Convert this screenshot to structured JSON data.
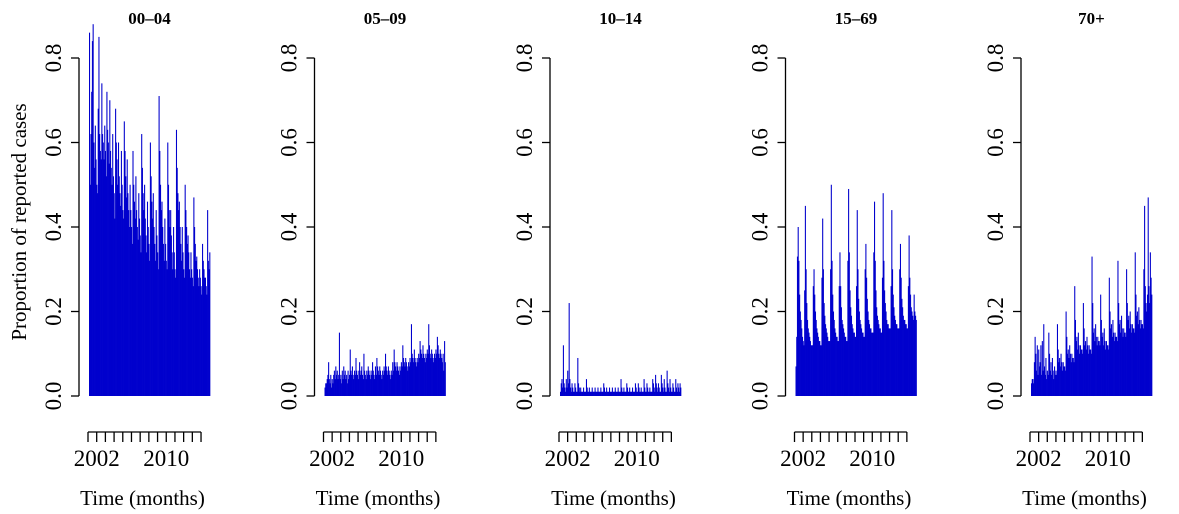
{
  "chart_data": [
    {
      "type": "bar",
      "title": "00–04",
      "xlabel": "Time (months)",
      "ylabel": "Proportion of reported cases",
      "ylim": [
        0,
        0.8
      ],
      "yticks": [
        "0.0",
        "0.2",
        "0.4",
        "0.6",
        "0.8"
      ],
      "xticklabels": [
        "2002",
        "2010"
      ],
      "x_start": "2001-01",
      "color": "#0000cd",
      "values": [
        0.86,
        0.5,
        0.62,
        0.72,
        0.84,
        0.88,
        0.6,
        0.54,
        0.64,
        0.56,
        0.5,
        0.48,
        0.68,
        0.85,
        0.62,
        0.58,
        0.56,
        0.74,
        0.62,
        0.6,
        0.56,
        0.64,
        0.58,
        0.52,
        0.72,
        0.63,
        0.6,
        0.55,
        0.7,
        0.58,
        0.54,
        0.5,
        0.62,
        0.52,
        0.48,
        0.42,
        0.68,
        0.6,
        0.56,
        0.5,
        0.6,
        0.52,
        0.48,
        0.45,
        0.58,
        0.5,
        0.44,
        0.42,
        0.65,
        0.58,
        0.52,
        0.47,
        0.56,
        0.48,
        0.44,
        0.4,
        0.5,
        0.44,
        0.4,
        0.36,
        0.58,
        0.5,
        0.46,
        0.42,
        0.52,
        0.44,
        0.4,
        0.37,
        0.48,
        0.42,
        0.38,
        0.34,
        0.62,
        0.54,
        0.48,
        0.44,
        0.5,
        0.42,
        0.38,
        0.34,
        0.46,
        0.4,
        0.36,
        0.32,
        0.6,
        0.52,
        0.46,
        0.42,
        0.48,
        0.4,
        0.36,
        0.32,
        0.44,
        0.38,
        0.34,
        0.3,
        0.71,
        0.58,
        0.5,
        0.44,
        0.46,
        0.4,
        0.36,
        0.32,
        0.42,
        0.36,
        0.32,
        0.3,
        0.6,
        0.5,
        0.44,
        0.4,
        0.44,
        0.38,
        0.34,
        0.3,
        0.4,
        0.34,
        0.3,
        0.28,
        0.63,
        0.54,
        0.48,
        0.44,
        0.46,
        0.4,
        0.36,
        0.32,
        0.4,
        0.34,
        0.3,
        0.28,
        0.5,
        0.44,
        0.4,
        0.36,
        0.38,
        0.34,
        0.3,
        0.28,
        0.34,
        0.3,
        0.28,
        0.26,
        0.47,
        0.4,
        0.36,
        0.32,
        0.33,
        0.3,
        0.28,
        0.26,
        0.3,
        0.28,
        0.26,
        0.24,
        0.36,
        0.32,
        0.3,
        0.28,
        0.28,
        0.26,
        0.24,
        0.44,
        0.32,
        0.3,
        0.34
      ]
    },
    {
      "type": "bar",
      "title": "05–09",
      "xlabel": "Time (months)",
      "ylabel": "",
      "ylim": [
        0,
        0.8
      ],
      "yticks": [
        "0.0",
        "0.2",
        "0.4",
        "0.6",
        "0.8"
      ],
      "xticklabels": [
        "2002",
        "2010"
      ],
      "x_start": "2001-01",
      "color": "#0000cd",
      "values": [
        0.02,
        0.03,
        0.03,
        0.04,
        0.05,
        0.08,
        0.04,
        0.03,
        0.05,
        0.02,
        0.04,
        0.03,
        0.05,
        0.06,
        0.04,
        0.07,
        0.05,
        0.06,
        0.04,
        0.05,
        0.15,
        0.04,
        0.05,
        0.03,
        0.06,
        0.04,
        0.07,
        0.05,
        0.06,
        0.04,
        0.05,
        0.03,
        0.06,
        0.04,
        0.05,
        0.11,
        0.06,
        0.05,
        0.07,
        0.05,
        0.04,
        0.06,
        0.05,
        0.09,
        0.06,
        0.05,
        0.04,
        0.06,
        0.08,
        0.05,
        0.06,
        0.07,
        0.05,
        0.04,
        0.1,
        0.06,
        0.05,
        0.04,
        0.06,
        0.05,
        0.07,
        0.06,
        0.05,
        0.04,
        0.06,
        0.05,
        0.08,
        0.06,
        0.05,
        0.04,
        0.07,
        0.05,
        0.09,
        0.07,
        0.06,
        0.05,
        0.07,
        0.06,
        0.05,
        0.04,
        0.06,
        0.05,
        0.07,
        0.06,
        0.1,
        0.07,
        0.06,
        0.05,
        0.07,
        0.06,
        0.05,
        0.04,
        0.06,
        0.05,
        0.08,
        0.06,
        0.11,
        0.08,
        0.07,
        0.06,
        0.08,
        0.07,
        0.06,
        0.05,
        0.07,
        0.06,
        0.08,
        0.07,
        0.12,
        0.09,
        0.08,
        0.07,
        0.09,
        0.08,
        0.07,
        0.06,
        0.08,
        0.07,
        0.09,
        0.08,
        0.17,
        0.1,
        0.09,
        0.08,
        0.11,
        0.09,
        0.08,
        0.07,
        0.09,
        0.08,
        0.1,
        0.09,
        0.13,
        0.11,
        0.1,
        0.09,
        0.12,
        0.1,
        0.09,
        0.08,
        0.1,
        0.09,
        0.11,
        0.1,
        0.17,
        0.12,
        0.1,
        0.09,
        0.11,
        0.1,
        0.09,
        0.08,
        0.1,
        0.09,
        0.11,
        0.1,
        0.14,
        0.12,
        0.1,
        0.09,
        0.11,
        0.1,
        0.09,
        0.08,
        0.1,
        0.06,
        0.13,
        0.08
      ]
    },
    {
      "type": "bar",
      "title": "10–14",
      "xlabel": "Time (months)",
      "ylabel": "",
      "ylim": [
        0,
        0.8
      ],
      "yticks": [
        "0.0",
        "0.2",
        "0.4",
        "0.6",
        "0.8"
      ],
      "xticklabels": [
        "2002",
        "2010"
      ],
      "x_start": "2001-01",
      "color": "#0000cd",
      "values": [
        0.01,
        0.03,
        0.04,
        0.02,
        0.12,
        0.03,
        0.02,
        0.01,
        0.04,
        0.02,
        0.06,
        0.03,
        0.22,
        0.04,
        0.02,
        0.01,
        0.03,
        0.02,
        0.01,
        0.01,
        0.03,
        0.02,
        0.01,
        0.01,
        0.09,
        0.03,
        0.02,
        0.01,
        0.02,
        0.01,
        0.01,
        0.01,
        0.02,
        0.01,
        0.01,
        0.01,
        0.04,
        0.02,
        0.01,
        0.01,
        0.02,
        0.01,
        0.01,
        0.01,
        0.02,
        0.01,
        0.01,
        0.01,
        0.02,
        0.01,
        0.01,
        0.01,
        0.02,
        0.01,
        0.01,
        0.01,
        0.02,
        0.01,
        0.01,
        0.01,
        0.03,
        0.02,
        0.01,
        0.01,
        0.02,
        0.01,
        0.01,
        0.01,
        0.02,
        0.01,
        0.01,
        0.01,
        0.02,
        0.01,
        0.01,
        0.01,
        0.02,
        0.01,
        0.01,
        0.01,
        0.02,
        0.01,
        0.01,
        0.01,
        0.04,
        0.02,
        0.01,
        0.01,
        0.02,
        0.01,
        0.01,
        0.01,
        0.03,
        0.02,
        0.01,
        0.01,
        0.02,
        0.01,
        0.01,
        0.01,
        0.02,
        0.01,
        0.01,
        0.01,
        0.03,
        0.02,
        0.01,
        0.01,
        0.03,
        0.02,
        0.01,
        0.01,
        0.02,
        0.01,
        0.01,
        0.01,
        0.04,
        0.02,
        0.01,
        0.01,
        0.03,
        0.02,
        0.01,
        0.01,
        0.02,
        0.01,
        0.01,
        0.01,
        0.04,
        0.03,
        0.02,
        0.01,
        0.05,
        0.03,
        0.02,
        0.01,
        0.03,
        0.02,
        0.01,
        0.01,
        0.05,
        0.03,
        0.02,
        0.01,
        0.04,
        0.02,
        0.01,
        0.01,
        0.06,
        0.03,
        0.02,
        0.01,
        0.04,
        0.02,
        0.01,
        0.01,
        0.03,
        0.02,
        0.01,
        0.01,
        0.04,
        0.02,
        0.01,
        0.03,
        0.02,
        0.01,
        0.03,
        0.02
      ]
    },
    {
      "type": "bar",
      "title": "15–69",
      "xlabel": "Time (months)",
      "ylabel": "",
      "ylim": [
        0,
        0.8
      ],
      "yticks": [
        "0.0",
        "0.2",
        "0.4",
        "0.6",
        "0.8"
      ],
      "xticklabels": [
        "2002",
        "2010"
      ],
      "x_start": "2001-01",
      "color": "#0000cd",
      "values": [
        0.07,
        0.14,
        0.33,
        0.4,
        0.32,
        0.24,
        0.2,
        0.18,
        0.16,
        0.14,
        0.13,
        0.12,
        0.25,
        0.45,
        0.3,
        0.22,
        0.18,
        0.16,
        0.15,
        0.14,
        0.13,
        0.12,
        0.12,
        0.12,
        0.26,
        0.3,
        0.24,
        0.2,
        0.18,
        0.16,
        0.15,
        0.14,
        0.13,
        0.13,
        0.12,
        0.12,
        0.28,
        0.42,
        0.3,
        0.22,
        0.19,
        0.17,
        0.16,
        0.15,
        0.14,
        0.13,
        0.13,
        0.13,
        0.3,
        0.5,
        0.32,
        0.24,
        0.2,
        0.18,
        0.16,
        0.15,
        0.14,
        0.14,
        0.13,
        0.13,
        0.26,
        0.34,
        0.26,
        0.21,
        0.18,
        0.17,
        0.16,
        0.15,
        0.14,
        0.14,
        0.13,
        0.13,
        0.32,
        0.49,
        0.34,
        0.25,
        0.21,
        0.19,
        0.17,
        0.16,
        0.15,
        0.15,
        0.14,
        0.14,
        0.26,
        0.44,
        0.3,
        0.23,
        0.2,
        0.18,
        0.17,
        0.16,
        0.15,
        0.15,
        0.14,
        0.14,
        0.3,
        0.36,
        0.28,
        0.23,
        0.2,
        0.18,
        0.17,
        0.16,
        0.16,
        0.15,
        0.15,
        0.15,
        0.34,
        0.46,
        0.32,
        0.25,
        0.21,
        0.19,
        0.18,
        0.17,
        0.16,
        0.16,
        0.15,
        0.15,
        0.28,
        0.48,
        0.32,
        0.25,
        0.22,
        0.2,
        0.18,
        0.17,
        0.17,
        0.16,
        0.16,
        0.16,
        0.26,
        0.44,
        0.3,
        0.24,
        0.21,
        0.19,
        0.18,
        0.17,
        0.17,
        0.16,
        0.16,
        0.16,
        0.3,
        0.36,
        0.28,
        0.23,
        0.21,
        0.19,
        0.18,
        0.18,
        0.17,
        0.17,
        0.16,
        0.16,
        0.26,
        0.38,
        0.28,
        0.24,
        0.21,
        0.2,
        0.19,
        0.18,
        0.24,
        0.2,
        0.19,
        0.18
      ]
    },
    {
      "type": "bar",
      "title": "70+",
      "xlabel": "Time (months)",
      "ylabel": "",
      "ylim": [
        0,
        0.8
      ],
      "yticks": [
        "0.0",
        "0.2",
        "0.4",
        "0.6",
        "0.8"
      ],
      "xticklabels": [
        "2002",
        "2010"
      ],
      "x_start": "2001-01",
      "color": "#0000cd",
      "values": [
        0.03,
        0.04,
        0.04,
        0.03,
        0.08,
        0.14,
        0.1,
        0.06,
        0.12,
        0.05,
        0.11,
        0.07,
        0.08,
        0.12,
        0.05,
        0.13,
        0.06,
        0.17,
        0.07,
        0.05,
        0.09,
        0.04,
        0.06,
        0.05,
        0.15,
        0.1,
        0.06,
        0.08,
        0.05,
        0.09,
        0.06,
        0.04,
        0.07,
        0.05,
        0.06,
        0.05,
        0.17,
        0.11,
        0.08,
        0.09,
        0.07,
        0.1,
        0.08,
        0.06,
        0.08,
        0.07,
        0.07,
        0.06,
        0.2,
        0.14,
        0.1,
        0.11,
        0.09,
        0.12,
        0.1,
        0.08,
        0.1,
        0.09,
        0.09,
        0.08,
        0.26,
        0.18,
        0.13,
        0.14,
        0.11,
        0.15,
        0.12,
        0.1,
        0.12,
        0.11,
        0.11,
        0.1,
        0.22,
        0.16,
        0.12,
        0.13,
        0.11,
        0.14,
        0.12,
        0.1,
        0.12,
        0.11,
        0.11,
        0.1,
        0.33,
        0.22,
        0.15,
        0.16,
        0.13,
        0.17,
        0.14,
        0.12,
        0.14,
        0.13,
        0.13,
        0.12,
        0.24,
        0.18,
        0.14,
        0.15,
        0.12,
        0.16,
        0.13,
        0.11,
        0.13,
        0.12,
        0.12,
        0.11,
        0.28,
        0.2,
        0.16,
        0.17,
        0.14,
        0.18,
        0.15,
        0.13,
        0.15,
        0.14,
        0.14,
        0.13,
        0.32,
        0.22,
        0.17,
        0.18,
        0.15,
        0.19,
        0.16,
        0.14,
        0.16,
        0.15,
        0.15,
        0.14,
        0.3,
        0.22,
        0.18,
        0.19,
        0.16,
        0.2,
        0.17,
        0.15,
        0.17,
        0.16,
        0.16,
        0.15,
        0.34,
        0.24,
        0.19,
        0.2,
        0.17,
        0.21,
        0.18,
        0.16,
        0.18,
        0.17,
        0.17,
        0.16,
        0.3,
        0.45,
        0.26,
        0.22,
        0.2,
        0.24,
        0.47,
        0.26,
        0.22,
        0.34,
        0.28,
        0.24
      ]
    }
  ]
}
